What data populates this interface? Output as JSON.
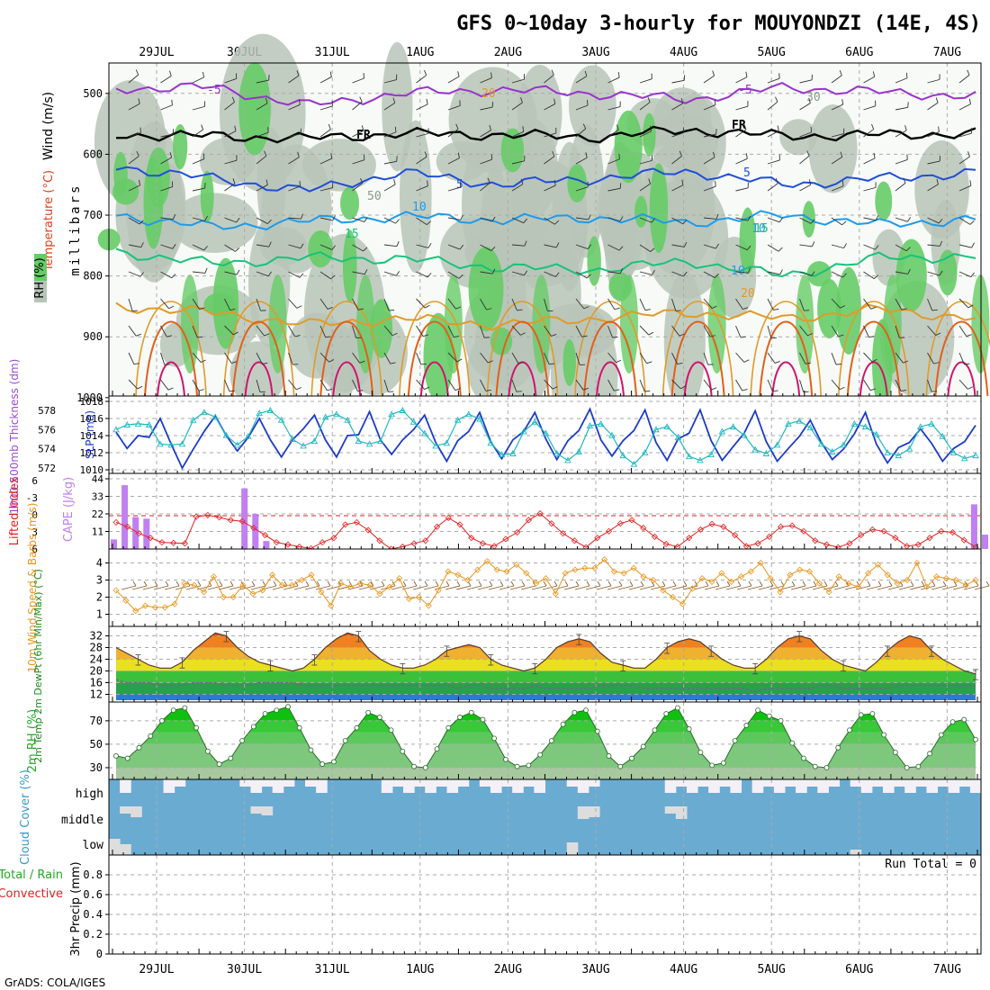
{
  "title": "GFS 0~10day 3-hourly for MOUYONDZI (14E, 4S)",
  "credit": "GrADS: COLA/IGES",
  "run_total_label": "Run Total = 0",
  "days": [
    "29JUL",
    "30JUL",
    "31JUL",
    "1AUG",
    "2AUG",
    "3AUG",
    "4AUG",
    "5AUG",
    "6AUG",
    "7AUG"
  ],
  "colors": {
    "rh_green": "#66cc66",
    "rh_dark": "#b8c4b8",
    "rh_light": "#e2eee2",
    "t_m5": "#9933cc",
    "t_fr": "#000000",
    "t_5": "#1f4fd8",
    "t_10": "#1e9bea",
    "t_15": "#19c27a",
    "t_20": "#e09a2a",
    "t_25": "#e0601a",
    "t_30": "#d0146e",
    "slp": "#1c3cc8",
    "thick": "#1fb8c0",
    "cape": "#c080f0",
    "li": "#e02020",
    "wind": "#e8961c",
    "barb": "#8a5a2a",
    "cloud": "#6aabd2",
    "cloud_clear": "#f4f0f8"
  },
  "chart_data": [
    {
      "type": "heatmap",
      "title": "Wind (m/s) / Temperature (°C) / RH (%)",
      "ylabel": "millibars",
      "ylabels": [
        "Wind (m/s)",
        "Temperature (°C)",
        "RH (%)"
      ],
      "yticks": [
        "500",
        "600",
        "700",
        "800",
        "900",
        "1000"
      ],
      "ylim": [
        1000,
        450
      ],
      "contour_labels": [
        "-5",
        "FR",
        "5",
        "10",
        "15",
        "20",
        "10",
        "50",
        "30",
        "-5",
        "FR",
        "5",
        "10",
        "15",
        "20"
      ],
      "contours": [
        {
          "name": "-5",
          "level_mb": [
            492,
            490,
            520,
            500,
            494,
            500,
            510,
            490,
            498,
            505
          ]
        },
        {
          "name": "FR",
          "level_mb": [
            568,
            570,
            574,
            566,
            568,
            572,
            560,
            570,
            568,
            566
          ]
        },
        {
          "name": "5",
          "level_mb": [
            620,
            640,
            660,
            630,
            650,
            640,
            628,
            650,
            640,
            630
          ]
        },
        {
          "name": "10",
          "level_mb": [
            700,
            720,
            710,
            702,
            708,
            704,
            712,
            700,
            716,
            706
          ]
        },
        {
          "name": "15",
          "level_mb": [
            760,
            780,
            770,
            772,
            786,
            790,
            776,
            800,
            770,
            768
          ]
        },
        {
          "name": "20",
          "level_mb": [
            850,
            860,
            880,
            870,
            880,
            870,
            860,
            870,
            855,
            870
          ]
        }
      ]
    },
    {
      "type": "line",
      "title": "1000-500mb Thickness (dm) / SLP (mb)",
      "ylabel_left": "1000-500mb Thickness (dm)",
      "ylabel_right": "SLP (mb)",
      "yticks_left": [
        "572",
        "574",
        "576",
        "578"
      ],
      "yticks_right": [
        "1010",
        "1012",
        "1014",
        "1016",
        "1018"
      ],
      "series": [
        {
          "name": "SLP (mb)",
          "values": [
            1014.4,
            1012.5,
            1014.0,
            1013.8,
            1016.0,
            1013.0,
            1010.2,
            1012.4,
            1014.5,
            1016.3,
            1014.0,
            1012.2,
            1013.8,
            1016.0,
            1013.5,
            1011.5,
            1013.5,
            1014.8,
            1016.4,
            1013.5,
            1011.5,
            1014.0,
            1014.1,
            1016.8,
            1013.5,
            1011.8,
            1013.5,
            1014.7,
            1016.4,
            1013.2,
            1011.0,
            1013.4,
            1014.5,
            1016.7,
            1013.3,
            1011.3,
            1013.5,
            1014.5,
            1016.7,
            1013.6,
            1011.2,
            1013.4,
            1014.6,
            1017.1,
            1013.5,
            1011.6,
            1013.4,
            1014.6,
            1017.0,
            1013.2,
            1011.1,
            1013.6,
            1014.3,
            1017.0,
            1013.4,
            1011.1,
            1012.7,
            1014.3,
            1016.9,
            1013.3,
            1011.0,
            1012.5,
            1013.9,
            1015.8,
            1013.2,
            1011.2,
            1012.4,
            1014.2,
            1016.7,
            1013.0,
            1010.8,
            1012.6,
            1013.2,
            1014.8,
            1013.1,
            1011.0,
            1012.5,
            1013.3,
            1015.2
          ]
        },
        {
          "name": "Thickness (dm)",
          "values": [
            576.0,
            576.5,
            576.6,
            576.5,
            574.5,
            574.4,
            574.5,
            577.0,
            577.8,
            577.3,
            575.4,
            574.4,
            575.3,
            577.7,
            578.0,
            577.0,
            575.0,
            574.3,
            574.8,
            577.3,
            577.6,
            577.0,
            574.8,
            574.5,
            574.8,
            577.6,
            578.0,
            576.8,
            575.6,
            574.3,
            574.6,
            577.0,
            577.6,
            577.1,
            574.6,
            573.4,
            573.5,
            575.8,
            576.8,
            575.6,
            573.5,
            572.8,
            573.7,
            576.4,
            576.6,
            575.4,
            573.3,
            572.4,
            573.6,
            576.0,
            576.3,
            575.2,
            573.2,
            572.8,
            573.4,
            575.8,
            576.3,
            575.4,
            573.9,
            573.5,
            574.4,
            576.6,
            576.9,
            576.2,
            574.5,
            573.7,
            574.4,
            576.6,
            576.3,
            575.5,
            573.6,
            573.3,
            574.0,
            576.3,
            576.6,
            575.3,
            573.6,
            573.0,
            573.3
          ]
        }
      ]
    },
    {
      "type": "bar",
      "title": "Lifted Index / CAPE (J/kg)",
      "ylabel_left": "Lifted Index",
      "ylabel_right": "CAPE (J/kg)",
      "yticks_left": [
        "6",
        "-3",
        "0",
        "3",
        "6"
      ],
      "yticks_right": [
        "11",
        "22",
        "33",
        "44"
      ],
      "cape_values": [
        6,
        40,
        20,
        19,
        0,
        0,
        0,
        0,
        0,
        0,
        0,
        0,
        38,
        22,
        5,
        0,
        0,
        0,
        0,
        0,
        0,
        0,
        0,
        0,
        0,
        0,
        0,
        0,
        0,
        0,
        0,
        0,
        0,
        0,
        0,
        0,
        0,
        0,
        0,
        0,
        0,
        0,
        0,
        0,
        0,
        0,
        0,
        0,
        0,
        0,
        0,
        0,
        0,
        0,
        0,
        0,
        0,
        0,
        0,
        0,
        0,
        0,
        0,
        0,
        0,
        0,
        0,
        0,
        0,
        0,
        0,
        0,
        0,
        0,
        0,
        0,
        0,
        0,
        0,
        28,
        9
      ],
      "lifted_index": [
        1.2,
        2.0,
        3.2,
        4.0,
        4.8,
        4.9,
        5.0,
        0.2,
        -0.1,
        0.3,
        0.8,
        1.0,
        2.2,
        3.5,
        4.8,
        5.2,
        5.6,
        5.9,
        4.8,
        4.0,
        1.6,
        1.2,
        2.6,
        4.5,
        6.0,
        5.6,
        5.0,
        4.5,
        2.0,
        0.4,
        1.6,
        4.0,
        5.0,
        5.5,
        4.2,
        3.0,
        0.8,
        -0.4,
        1.4,
        3.2,
        4.5,
        5.7,
        4.0,
        2.8,
        1.4,
        0.8,
        2.2,
        3.8,
        5.1,
        5.6,
        4.0,
        2.5,
        1.5,
        2.0,
        3.5,
        5.5,
        5.0,
        3.8,
        2.0,
        1.8,
        2.8,
        4.5,
        5.2,
        5.7,
        5.0,
        3.5,
        2.5,
        2.8,
        4.0,
        5.5,
        5.2,
        4.0,
        2.8,
        3.0,
        4.4,
        5.7
      ]
    },
    {
      "type": "line",
      "title": "10m Wind Speed & Barbs (m/s)",
      "ylabel": "10m Wind Speed & Barbs (m/s)",
      "yticks": [
        "1",
        "2",
        "3",
        "4"
      ],
      "values": [
        2.4,
        1.8,
        1.2,
        1.5,
        1.4,
        1.4,
        1.6,
        2.8,
        2.7,
        2.3,
        3.2,
        2.0,
        2.0,
        2.7,
        2.2,
        2.4,
        3.3,
        2.7,
        2.7,
        3.0,
        3.3,
        2.3,
        1.5,
        2.8,
        2.6,
        2.8,
        2.7,
        2.2,
        2.6,
        3.1,
        1.9,
        2.0,
        1.5,
        2.4,
        3.5,
        3.3,
        3.0,
        3.6,
        4.1,
        3.6,
        3.5,
        3.9,
        3.4,
        2.8,
        3.1,
        2.2,
        3.4,
        3.6,
        3.7,
        3.7,
        4.2,
        3.5,
        3.4,
        3.7,
        3.2,
        3.0,
        2.4,
        2.0,
        1.6,
        2.5,
        3.1,
        2.9,
        3.4,
        2.9,
        3.2,
        3.5,
        4.0,
        3.1,
        2.3,
        3.3,
        3.6,
        3.5,
        2.8,
        2.3,
        3.2,
        2.8,
        2.6,
        3.4,
        3.9,
        3.3,
        2.8,
        3.0,
        4.0,
        2.6,
        3.2,
        3.1,
        3.0,
        2.7,
        3.0
      ]
    },
    {
      "type": "area",
      "title": "2m Temp / 2m DewPt (°C) (6hr Min/Max)",
      "ylabel": "2m Temp 2m DewPt (6hr Min/Max) (°C)",
      "yticks": [
        "12",
        "16",
        "20",
        "24",
        "28",
        "32"
      ],
      "temp": [
        28,
        26,
        24,
        22,
        21,
        21,
        23,
        27,
        30,
        33,
        32,
        28,
        25,
        23,
        22,
        21,
        20,
        21,
        24,
        28,
        31,
        33,
        32,
        27,
        24,
        22,
        21,
        21,
        22,
        24,
        27,
        28,
        29,
        28,
        24,
        22,
        21,
        20,
        21,
        24,
        28,
        30,
        31,
        30,
        26,
        23,
        22,
        21,
        21,
        24,
        28,
        30,
        31,
        30,
        27,
        24,
        22,
        21,
        21,
        24,
        28,
        31,
        32,
        31,
        27,
        24,
        22,
        21,
        20,
        23,
        27,
        30,
        32,
        31,
        27,
        24,
        22,
        20,
        19
      ],
      "dewpoint": [
        17,
        16,
        16,
        16,
        15,
        15,
        15,
        16,
        16,
        16,
        15,
        15,
        15,
        16,
        16,
        16,
        16,
        15,
        15,
        15,
        15,
        15,
        15,
        15,
        15,
        15,
        15,
        15,
        15,
        15,
        15,
        14,
        15,
        15,
        14,
        14,
        14,
        14,
        15,
        14,
        14,
        14,
        14,
        14,
        15,
        15,
        15,
        15,
        14,
        14,
        14,
        14,
        14,
        14,
        14,
        14,
        14,
        14,
        13,
        14,
        14,
        14,
        14,
        14,
        15,
        15,
        14,
        14,
        14,
        14,
        14,
        15,
        15,
        15,
        15,
        15,
        15,
        15,
        15
      ]
    },
    {
      "type": "area",
      "title": "2m RH (%)",
      "ylabel": "2m RH (%)",
      "yticks": [
        "30",
        "50",
        "70"
      ],
      "values": [
        40,
        38,
        47,
        57,
        70,
        79,
        81,
        64,
        44,
        33,
        38,
        53,
        65,
        76,
        79,
        82,
        64,
        45,
        33,
        35,
        53,
        64,
        77,
        73,
        62,
        44,
        31,
        30,
        46,
        64,
        73,
        77,
        71,
        55,
        37,
        31,
        32,
        41,
        53,
        67,
        77,
        79,
        61,
        40,
        31,
        38,
        48,
        62,
        76,
        81,
        63,
        43,
        32,
        34,
        53,
        66,
        79,
        74,
        70,
        51,
        38,
        31,
        30,
        47,
        62,
        75,
        76,
        58,
        43,
        30,
        31,
        42,
        58,
        69,
        71,
        54
      ]
    },
    {
      "type": "table",
      "title": "Cloud Cover (%)",
      "ylabel": "Cloud Cover (%)",
      "rows": [
        "high",
        "middle",
        "low"
      ]
    },
    {
      "type": "bar",
      "title": "3hr Precip (mm) Total / Rain Convective",
      "ylabel": "3hr Precip (mm)",
      "legend": [
        "Total / Rain",
        "Convective"
      ],
      "yticks": [
        "0",
        "0.2",
        "0.4",
        "0.6",
        "0.8"
      ],
      "ylim": [
        0,
        1
      ],
      "values": []
    }
  ]
}
